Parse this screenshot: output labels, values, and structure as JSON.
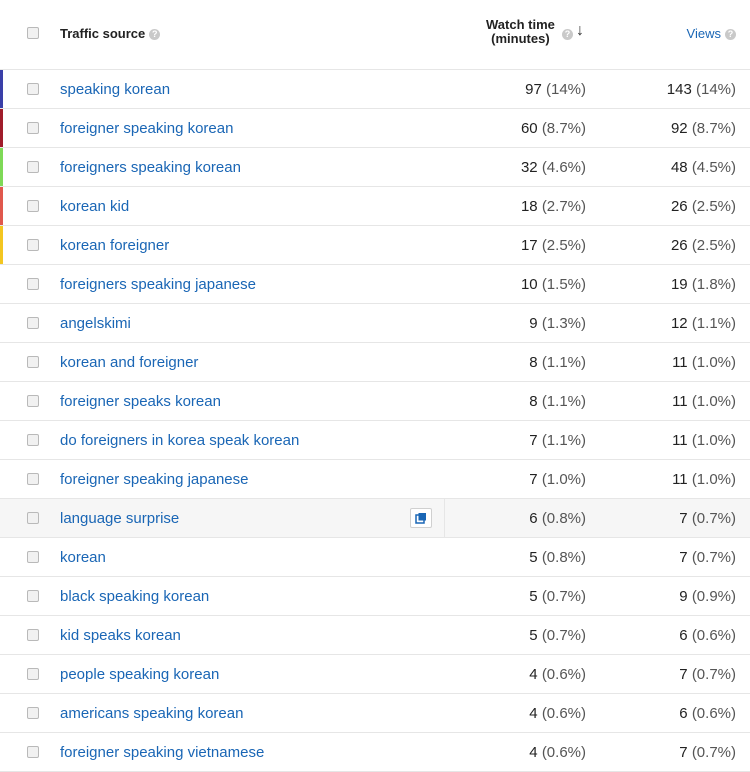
{
  "header": {
    "traffic_source": "Traffic source",
    "help_glyph": "?",
    "watch_time_line1": "Watch time",
    "watch_time_line2": "(minutes)",
    "sort_arrow": "↓",
    "views": "Views"
  },
  "rows": [
    {
      "source": "speaking korean",
      "watch": "97",
      "watch_pct": "(14%)",
      "views": "143",
      "views_pct": "(14%)",
      "stripe": "#3a3fa8"
    },
    {
      "source": "foreigner speaking korean",
      "watch": "60",
      "watch_pct": "(8.7%)",
      "views": "92",
      "views_pct": "(8.7%)",
      "stripe": "#a01c2a"
    },
    {
      "source": "foreigners speaking korean",
      "watch": "32",
      "watch_pct": "(4.6%)",
      "views": "48",
      "views_pct": "(4.5%)",
      "stripe": "#7ed957"
    },
    {
      "source": "korean kid",
      "watch": "18",
      "watch_pct": "(2.7%)",
      "views": "26",
      "views_pct": "(2.5%)",
      "stripe": "#e0584d"
    },
    {
      "source": "korean foreigner",
      "watch": "17",
      "watch_pct": "(2.5%)",
      "views": "26",
      "views_pct": "(2.5%)",
      "stripe": "#f3c620"
    },
    {
      "source": "foreigners speaking japanese",
      "watch": "10",
      "watch_pct": "(1.5%)",
      "views": "19",
      "views_pct": "(1.8%)"
    },
    {
      "source": "angelskimi",
      "watch": "9",
      "watch_pct": "(1.3%)",
      "views": "12",
      "views_pct": "(1.1%)"
    },
    {
      "source": "korean and foreigner",
      "watch": "8",
      "watch_pct": "(1.1%)",
      "views": "11",
      "views_pct": "(1.0%)"
    },
    {
      "source": "foreigner speaks korean",
      "watch": "8",
      "watch_pct": "(1.1%)",
      "views": "11",
      "views_pct": "(1.0%)"
    },
    {
      "source": "do foreigners in korea speak korean",
      "watch": "7",
      "watch_pct": "(1.1%)",
      "views": "11",
      "views_pct": "(1.0%)"
    },
    {
      "source": "foreigner speaking japanese",
      "watch": "7",
      "watch_pct": "(1.0%)",
      "views": "11",
      "views_pct": "(1.0%)"
    },
    {
      "source": "language surprise",
      "watch": "6",
      "watch_pct": "(0.8%)",
      "views": "7",
      "views_pct": "(0.7%)",
      "hover": true
    },
    {
      "source": "korean",
      "watch": "5",
      "watch_pct": "(0.8%)",
      "views": "7",
      "views_pct": "(0.7%)"
    },
    {
      "source": "black speaking korean",
      "watch": "5",
      "watch_pct": "(0.7%)",
      "views": "9",
      "views_pct": "(0.9%)"
    },
    {
      "source": "kid speaks korean",
      "watch": "5",
      "watch_pct": "(0.7%)",
      "views": "6",
      "views_pct": "(0.6%)"
    },
    {
      "source": "people speaking korean",
      "watch": "4",
      "watch_pct": "(0.6%)",
      "views": "7",
      "views_pct": "(0.7%)"
    },
    {
      "source": "americans speaking korean",
      "watch": "4",
      "watch_pct": "(0.6%)",
      "views": "6",
      "views_pct": "(0.6%)"
    },
    {
      "source": "foreigner speaking vietnamese",
      "watch": "4",
      "watch_pct": "(0.6%)",
      "views": "7",
      "views_pct": "(0.7%)"
    }
  ]
}
